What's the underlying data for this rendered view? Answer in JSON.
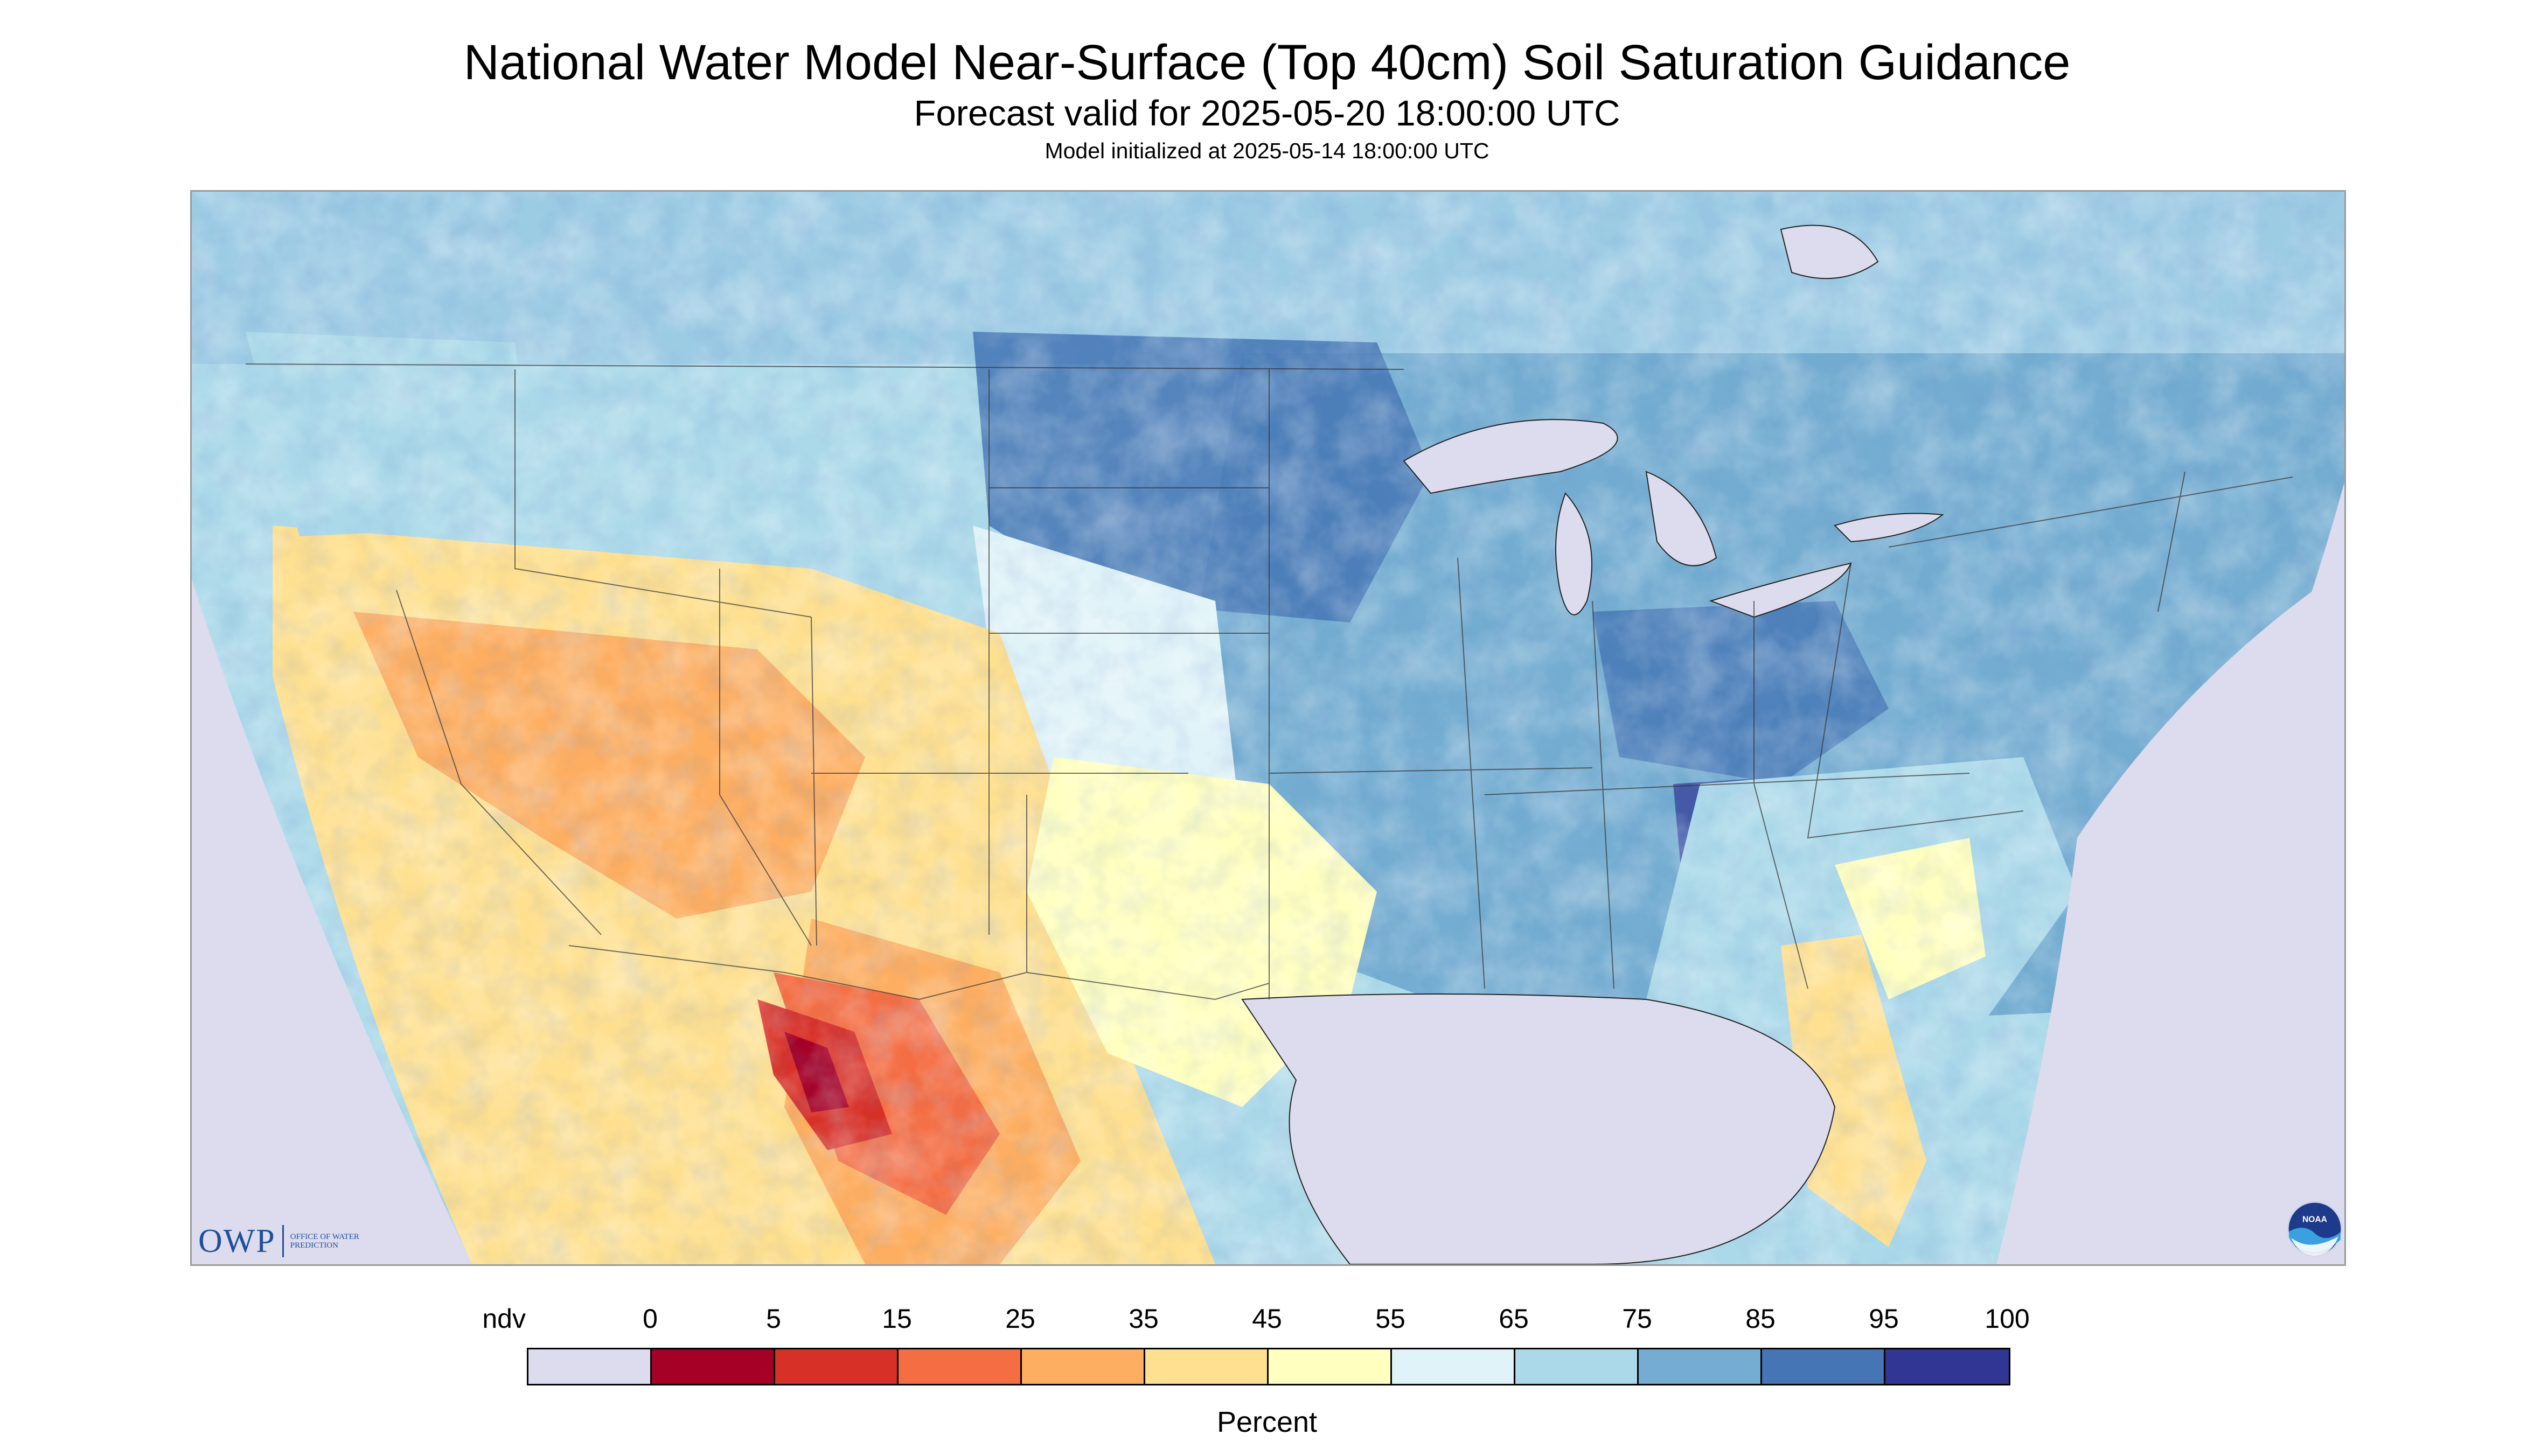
{
  "title": "National Water Model Near-Surface (Top 40cm) Soil Saturation Guidance",
  "subtitle": "Forecast valid for 2025-05-20 18:00:00 UTC",
  "init_line": "Model initialized at 2025-05-14 18:00:00 UTC",
  "legend": {
    "unit": "Percent",
    "tick_labels": [
      "ndv",
      "0",
      "5",
      "15",
      "25",
      "35",
      "45",
      "55",
      "65",
      "75",
      "85",
      "95",
      "100"
    ],
    "bins": [
      {
        "range": "ndv",
        "color": "#dcdcee"
      },
      {
        "range": "0-5",
        "color": "#a50026"
      },
      {
        "range": "5-15",
        "color": "#d73027"
      },
      {
        "range": "15-25",
        "color": "#f46d43"
      },
      {
        "range": "25-35",
        "color": "#fdae61"
      },
      {
        "range": "35-45",
        "color": "#fee090"
      },
      {
        "range": "45-55",
        "color": "#ffffbf"
      },
      {
        "range": "55-65",
        "color": "#e0f3f8"
      },
      {
        "range": "65-75",
        "color": "#abd9e9"
      },
      {
        "range": "75-85",
        "color": "#74add1"
      },
      {
        "range": "85-95",
        "color": "#4575b4"
      },
      {
        "range": "95-100",
        "color": "#313695"
      }
    ]
  },
  "logos": {
    "owp_mark": "OWP",
    "owp_text": "Office of Water Prediction",
    "noaa_text": "NOAA"
  },
  "map": {
    "variable": "soil saturation",
    "regions_depicted": [
      "CONUS",
      "southern Canada",
      "northern Mexico",
      "Great Lakes",
      "Gulf of Mexico"
    ]
  }
}
